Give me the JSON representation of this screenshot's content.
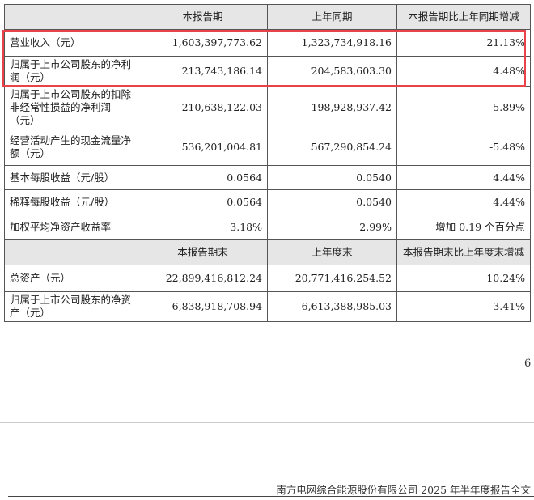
{
  "table": {
    "header": [
      "本报告期",
      "上年同期",
      "本报告期比上年同期增减"
    ],
    "rows": [
      [
        "营业收入（元）",
        "1,603,397,773.62",
        "1,323,734,918.16",
        "21.13%"
      ],
      [
        "归属于上市公司股东的净利润（元）",
        "213,743,186.14",
        "204,583,603.30",
        "4.48%"
      ],
      [
        "归属于上市公司股东的扣除非经常性损益的净利润（元）",
        "210,638,122.03",
        "198,928,937.42",
        "5.89%"
      ],
      [
        "经营活动产生的现金流量净额（元）",
        "536,201,004.81",
        "567,290,854.24",
        "-5.48%"
      ],
      [
        "基本每股收益（元/股）",
        "0.0564",
        "0.0540",
        "4.44%"
      ],
      [
        "稀释每股收益（元/股）",
        "0.0564",
        "0.0540",
        "4.44%"
      ],
      [
        "加权平均净资产收益率",
        "3.18%",
        "2.99%",
        "增加 0.19 个百分点"
      ]
    ],
    "header2": [
      "本报告期末",
      "上年度末",
      "本报告期末比上年度末增减"
    ],
    "rows2": [
      [
        "总资产（元）",
        "22,899,416,812.24",
        "20,771,416,254.52",
        "10.24%"
      ],
      [
        "归属于上市公司股东的净资产（元）",
        "6,838,918,708.94",
        "6,613,388,985.03",
        "3.41%"
      ]
    ]
  },
  "page_number": "6",
  "footer": "南方电网综合能源股份有限公司 2025 年半年度报告全文"
}
